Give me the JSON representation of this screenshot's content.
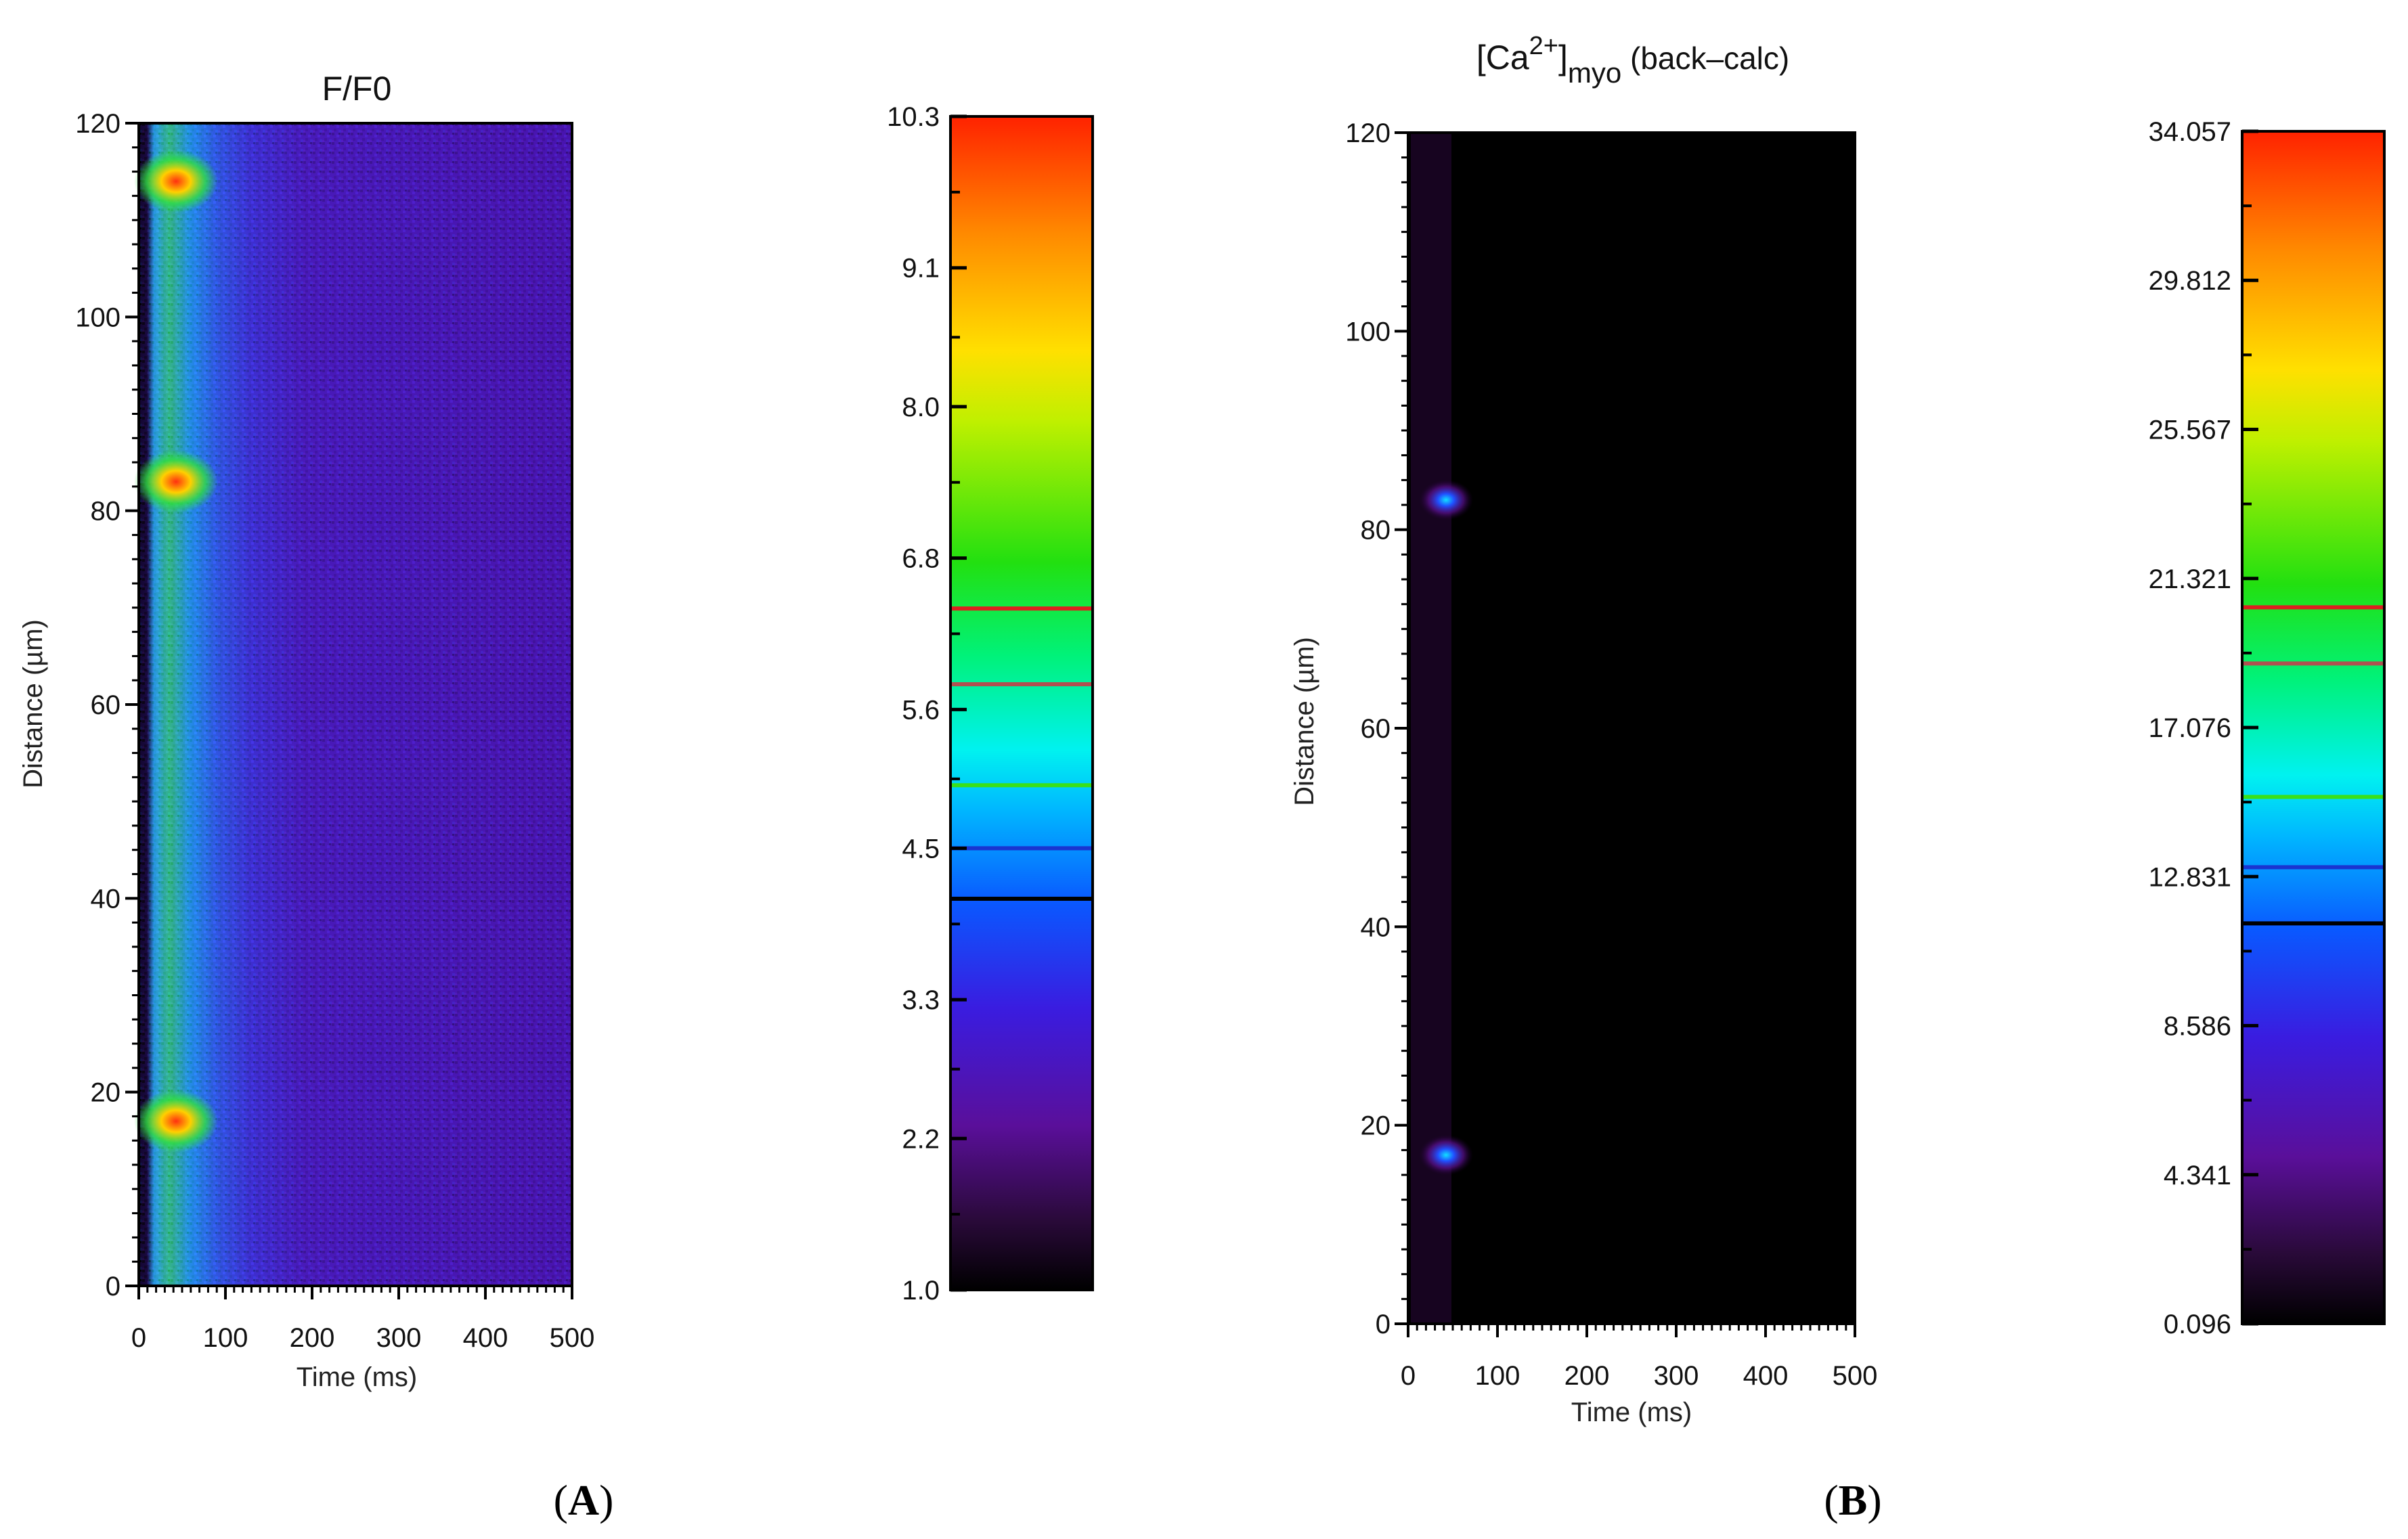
{
  "chart_data": [
    {
      "type": "heatmap",
      "panel_label": "A",
      "title": "F/F0",
      "xlabel": "Time (ms)",
      "ylabel": "Distance (µm)",
      "xlim": [
        0,
        500
      ],
      "ylim": [
        0,
        120
      ],
      "x_ticks": [
        0,
        100,
        200,
        300,
        400,
        500
      ],
      "y_ticks": [
        0,
        20,
        40,
        60,
        80,
        100,
        120
      ],
      "x_tick_labels": [
        "0",
        "100",
        "200",
        "300",
        "400",
        "500"
      ],
      "y_tick_labels": [
        "0",
        "20",
        "40",
        "60",
        "80",
        "100",
        "120"
      ],
      "colorbar": {
        "min": 1.0,
        "max": 10.3,
        "ticks": [
          1.0,
          2.2,
          3.3,
          4.5,
          5.6,
          6.8,
          8.0,
          9.1,
          10.3
        ],
        "tick_labels": [
          "1.0",
          "2.2",
          "3.3",
          "4.5",
          "5.6",
          "6.8",
          "8.0",
          "9.1",
          "10.3"
        ],
        "threshold_lines": [
          {
            "value": 6.4,
            "color": "#dd1f1f"
          },
          {
            "value": 5.8,
            "color": "#b05050"
          },
          {
            "value": 5.0,
            "color": "#39e01a"
          },
          {
            "value": 4.5,
            "color": "#1a34d0"
          },
          {
            "value": 4.1,
            "color": "#000000"
          }
        ]
      },
      "hotspots_um": [
        17,
        83,
        114
      ],
      "description_values": {
        "baseline_level": 0.22,
        "band_level": 0.55,
        "band_end_ms": 100
      }
    },
    {
      "type": "heatmap",
      "panel_label": "B",
      "title_prefix": "[Ca",
      "title_sup": "2+",
      "title_bracket": "]",
      "title_sub": "myo",
      "title_suffix": " (back–calc)",
      "xlabel": "Time (ms)",
      "ylabel": "Distance (µm)",
      "xlim": [
        0,
        500
      ],
      "ylim": [
        0,
        120
      ],
      "x_ticks": [
        0,
        100,
        200,
        300,
        400,
        500
      ],
      "y_ticks": [
        0,
        20,
        40,
        60,
        80,
        100,
        120
      ],
      "x_tick_labels": [
        "0",
        "100",
        "200",
        "300",
        "400",
        "500"
      ],
      "y_tick_labels": [
        "0",
        "20",
        "40",
        "60",
        "80",
        "100",
        "120"
      ],
      "colorbar": {
        "min": 0.096,
        "max": 34.057,
        "ticks": [
          0.096,
          4.341,
          8.586,
          12.831,
          17.076,
          21.321,
          25.567,
          29.812,
          34.057
        ],
        "tick_labels": [
          "0.096",
          "4.341",
          "8.586",
          "12.831",
          "17.076",
          "21.321",
          "25.567",
          "29.812",
          "34.057"
        ],
        "threshold_lines": [
          {
            "value": 20.5,
            "color": "#dd1f1f"
          },
          {
            "value": 18.9,
            "color": "#b05050"
          },
          {
            "value": 15.1,
            "color": "#39e01a"
          },
          {
            "value": 13.1,
            "color": "#1a34d0"
          },
          {
            "value": 11.5,
            "color": "#000000"
          }
        ]
      },
      "hotspots_um": [
        17,
        83
      ]
    }
  ],
  "panel_labels": {
    "a_open": "(",
    "a": "A",
    "a_close": ")",
    "b_open": "(",
    "b": "B",
    "b_close": ")"
  },
  "colors": {
    "colormap_stops": [
      "#000000",
      "#2a0a3a",
      "#5a0f9a",
      "#3a1ce0",
      "#0a58ff",
      "#00b8ff",
      "#00f2f0",
      "#00f27a",
      "#22e010",
      "#bff000",
      "#ffe000",
      "#ff8a00",
      "#ff2200"
    ]
  }
}
